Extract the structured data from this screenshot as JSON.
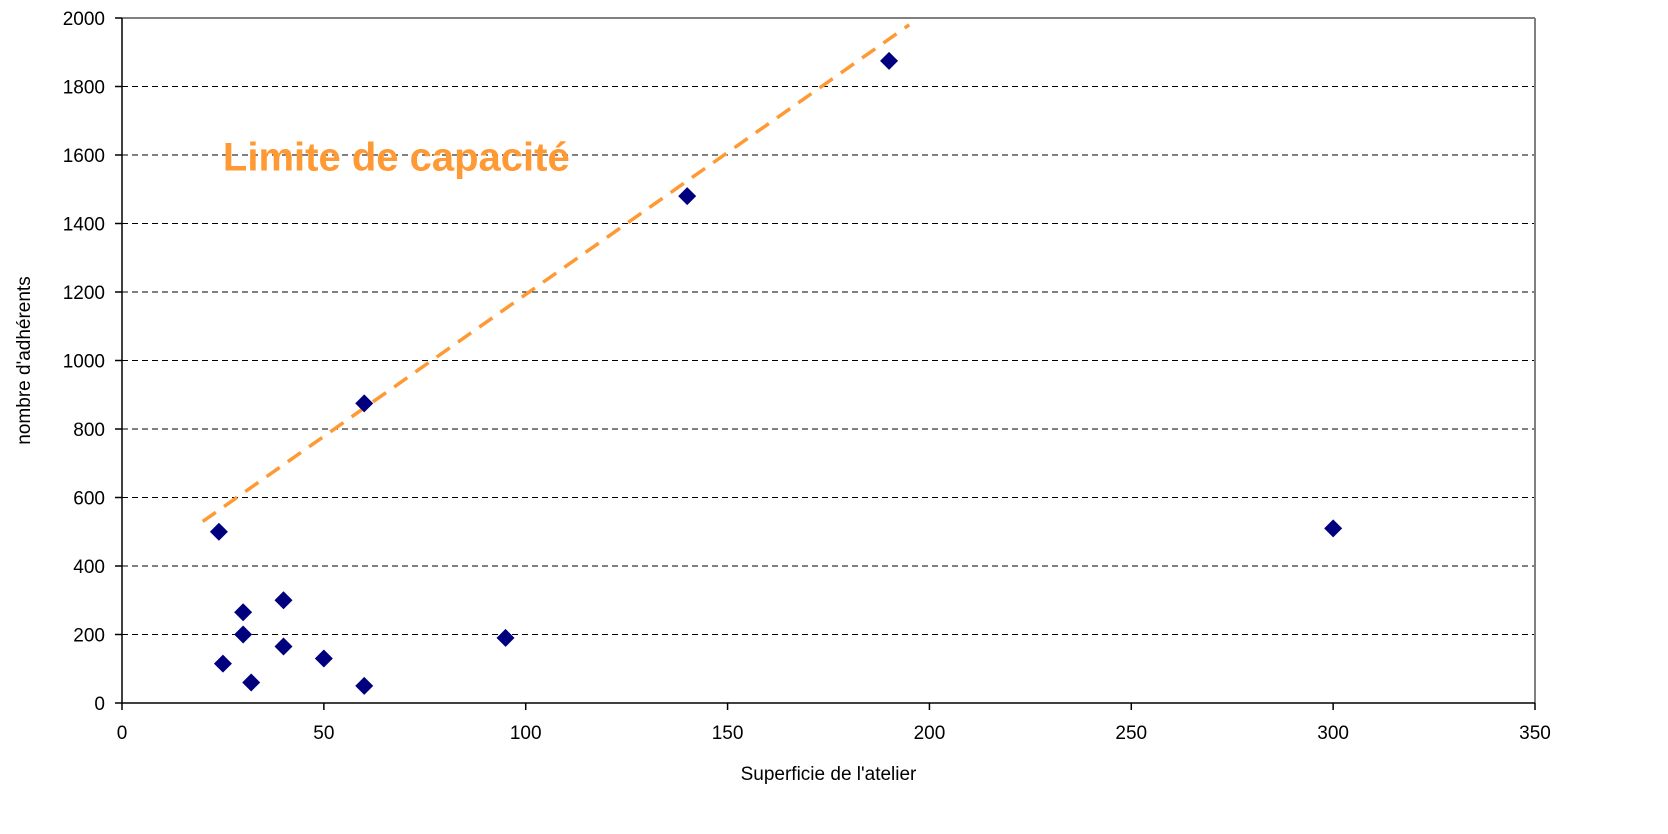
{
  "chart_data": {
    "type": "scatter",
    "title": "",
    "xlabel": "Superficie de l'atelier",
    "ylabel": "nombre d'adhérents",
    "xlim": [
      0,
      350
    ],
    "ylim": [
      0,
      2000
    ],
    "x_ticks": [
      0,
      50,
      100,
      150,
      200,
      250,
      300,
      350
    ],
    "y_ticks": [
      0,
      200,
      400,
      600,
      800,
      1000,
      1200,
      1400,
      1600,
      1800,
      2000
    ],
    "grid": "horizontal dashed",
    "legend": "none",
    "series": [
      {
        "marker": "diamond",
        "color": "#00007F",
        "points": [
          {
            "x": 24,
            "y": 500
          },
          {
            "x": 25,
            "y": 115
          },
          {
            "x": 30,
            "y": 265
          },
          {
            "x": 30,
            "y": 200
          },
          {
            "x": 32,
            "y": 60
          },
          {
            "x": 40,
            "y": 300
          },
          {
            "x": 40,
            "y": 165
          },
          {
            "x": 50,
            "y": 130
          },
          {
            "x": 60,
            "y": 875
          },
          {
            "x": 60,
            "y": 50
          },
          {
            "x": 95,
            "y": 190
          },
          {
            "x": 140,
            "y": 1480
          },
          {
            "x": 190,
            "y": 1875
          },
          {
            "x": 300,
            "y": 510
          }
        ]
      }
    ],
    "trend_line": {
      "color": "#FF9933",
      "style": "dashed",
      "from": {
        "x": 20,
        "y": 530
      },
      "to": {
        "x": 195,
        "y": 1980
      }
    },
    "annotation": {
      "text": "Limite de capacité",
      "color": "#FF9933",
      "x": 25,
      "y": 1555
    }
  }
}
